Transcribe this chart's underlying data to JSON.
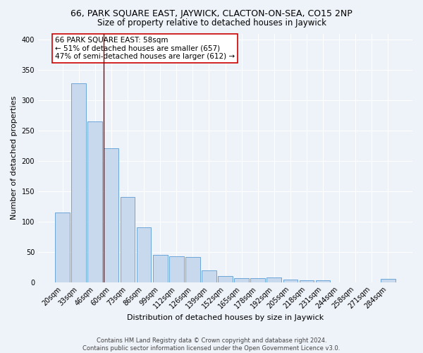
{
  "title": "66, PARK SQUARE EAST, JAYWICK, CLACTON-ON-SEA, CO15 2NP",
  "subtitle": "Size of property relative to detached houses in Jaywick",
  "xlabel": "Distribution of detached houses by size in Jaywick",
  "ylabel": "Number of detached properties",
  "footer_line1": "Contains HM Land Registry data © Crown copyright and database right 2024.",
  "footer_line2": "Contains public sector information licensed under the Open Government Licence v3.0.",
  "categories": [
    "20sqm",
    "33sqm",
    "46sqm",
    "60sqm",
    "73sqm",
    "86sqm",
    "99sqm",
    "112sqm",
    "126sqm",
    "139sqm",
    "152sqm",
    "165sqm",
    "178sqm",
    "192sqm",
    "205sqm",
    "218sqm",
    "231sqm",
    "244sqm",
    "258sqm",
    "271sqm",
    "284sqm"
  ],
  "values": [
    115,
    328,
    265,
    221,
    141,
    90,
    45,
    43,
    42,
    19,
    10,
    7,
    7,
    8,
    4,
    3,
    3,
    0,
    0,
    0,
    5
  ],
  "bar_color": "#c9d9ed",
  "bar_edge_color": "#5b9bd5",
  "red_line_color": "#8b0000",
  "red_line_x": 2.54,
  "annotation_text": "66 PARK SQUARE EAST: 58sqm\n← 51% of detached houses are smaller (657)\n47% of semi-detached houses are larger (612) →",
  "annotation_box_color": "#ffffff",
  "annotation_box_edge": "#cc0000",
  "ylim": [
    0,
    410
  ],
  "background_color": "#eef2f9",
  "grid_color": "#ffffff",
  "title_fontsize": 9,
  "subtitle_fontsize": 8.5,
  "axis_label_fontsize": 8,
  "tick_fontsize": 7,
  "annotation_fontsize": 7.5,
  "footer_fontsize": 6
}
